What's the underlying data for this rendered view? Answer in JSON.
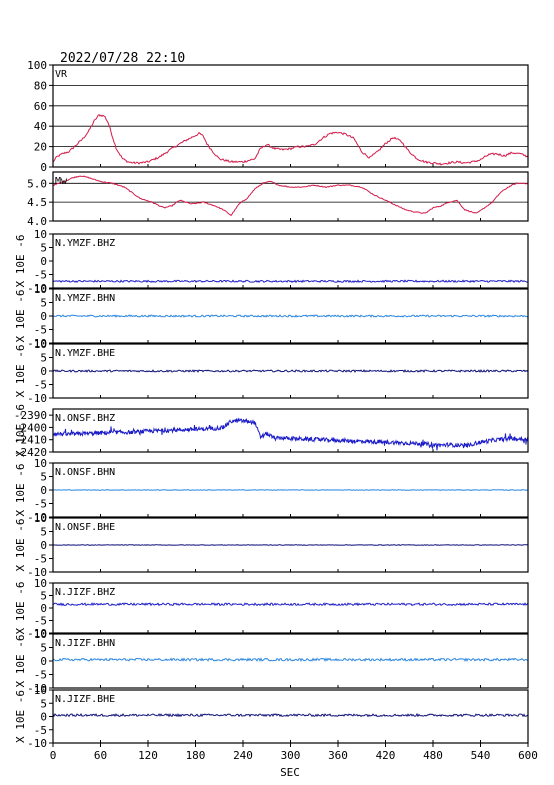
{
  "header": {
    "timestamp": "2022/07/28 22:10"
  },
  "x_axis": {
    "label": "SEC",
    "ticks": [
      0,
      60,
      120,
      180,
      240,
      300,
      360,
      420,
      480,
      540,
      600
    ],
    "range": [
      0,
      600
    ]
  },
  "colors": {
    "vr": "#d21b4a",
    "mw": "#d21b4a",
    "blue": "#1e1ec8",
    "light_blue": "#2a86e0",
    "navy": "#10107a",
    "grid": "#000000"
  },
  "chart_data": [
    {
      "type": "line",
      "label": "VR",
      "ylim": [
        0,
        100
      ],
      "yticks": [
        0,
        20,
        40,
        60,
        80,
        100
      ],
      "grid": true,
      "color": "#d21b4a",
      "x": [
        0,
        5,
        12,
        20,
        30,
        38,
        45,
        52,
        58,
        65,
        70,
        75,
        80,
        88,
        95,
        102,
        110,
        120,
        135,
        150,
        165,
        175,
        185,
        190,
        195,
        202,
        210,
        225,
        240,
        255,
        262,
        270,
        280,
        290,
        300,
        310,
        320,
        330,
        340,
        350,
        360,
        370,
        380,
        390,
        400,
        410,
        420,
        430,
        440,
        450,
        460,
        470,
        480,
        490,
        500,
        510,
        520,
        530,
        540,
        550,
        560,
        570,
        580,
        590,
        600
      ],
      "y": [
        5,
        10,
        13,
        15,
        22,
        28,
        35,
        45,
        51,
        50,
        43,
        30,
        18,
        8,
        5,
        4,
        4,
        5,
        10,
        18,
        25,
        29,
        33,
        30,
        22,
        15,
        8,
        5,
        5,
        8,
        18,
        22,
        18,
        17,
        18,
        20,
        20,
        22,
        28,
        33,
        34,
        32,
        28,
        15,
        9,
        15,
        23,
        29,
        25,
        15,
        8,
        5,
        4,
        3,
        4,
        5,
        4,
        5,
        7,
        12,
        13,
        11,
        14,
        13,
        10
      ]
    },
    {
      "type": "line",
      "label": "Mw",
      "ylim": [
        4.0,
        5.3
      ],
      "yticks": [
        4.0,
        4.5,
        5.0
      ],
      "grid": true,
      "color": "#d21b4a",
      "x": [
        0,
        8,
        15,
        25,
        35,
        45,
        60,
        75,
        90,
        100,
        110,
        125,
        140,
        150,
        160,
        175,
        190,
        205,
        215,
        225,
        235,
        245,
        255,
        265,
        275,
        285,
        300,
        315,
        330,
        345,
        360,
        375,
        390,
        405,
        420,
        430,
        445,
        455,
        470,
        480,
        490,
        500,
        510,
        520,
        535,
        545,
        555,
        565,
        575,
        585,
        600
      ],
      "y": [
        4.95,
        5.0,
        5.05,
        5.15,
        5.2,
        5.15,
        5.05,
        5.0,
        4.9,
        4.75,
        4.6,
        4.5,
        4.35,
        4.4,
        4.55,
        4.45,
        4.5,
        4.4,
        4.3,
        4.15,
        4.45,
        4.6,
        4.85,
        5.0,
        5.05,
        4.95,
        4.9,
        4.9,
        4.95,
        4.9,
        4.95,
        4.95,
        4.9,
        4.7,
        4.55,
        4.45,
        4.3,
        4.25,
        4.2,
        4.35,
        4.4,
        4.5,
        4.55,
        4.3,
        4.2,
        4.35,
        4.5,
        4.75,
        4.9,
        5.0,
        5.0
      ]
    },
    {
      "type": "line",
      "label": "N.YMZF.BHZ",
      "unit": "X 10E -6",
      "ylim": [
        -10,
        10
      ],
      "yticks": [
        -10,
        -5,
        0,
        5,
        10
      ],
      "color": "#1e1ec8",
      "offset": -7.5,
      "noise": 0.35,
      "pattern": "flat"
    },
    {
      "type": "line",
      "label": "N.YMZF.BHN",
      "unit": "X 10E -6",
      "ylim": [
        -10,
        10
      ],
      "yticks": [
        -10,
        -5,
        0,
        5,
        10
      ],
      "color": "#2a86e0",
      "offset": 0.0,
      "noise": 0.35,
      "pattern": "flat"
    },
    {
      "type": "line",
      "label": "N.YMZF.BHE",
      "unit": "X 10E -6",
      "ylim": [
        -10,
        10
      ],
      "yticks": [
        -10,
        -5,
        0,
        5,
        10
      ],
      "color": "#10107a",
      "offset": 0.0,
      "noise": 0.35,
      "pattern": "flat"
    },
    {
      "type": "line",
      "label": "N.ONSF.BHZ",
      "unit": "X 10E -6",
      "ylim": [
        -2420,
        -2385
      ],
      "yticks": [
        -2420,
        -2410,
        -2400,
        -2390
      ],
      "color": "#1e1ec8",
      "noise": 1.6,
      "pattern": "trend",
      "x": [
        0,
        20,
        40,
        60,
        80,
        100,
        120,
        140,
        160,
        180,
        200,
        215,
        225,
        235,
        245,
        255,
        262,
        270,
        280,
        290,
        300,
        320,
        340,
        360,
        380,
        400,
        420,
        440,
        460,
        470,
        480,
        490,
        500,
        520,
        540,
        560,
        580,
        600
      ],
      "y": [
        -2405,
        -2405.5,
        -2405,
        -2404.5,
        -2404,
        -2404,
        -2403,
        -2402.5,
        -2402,
        -2401.5,
        -2401,
        -2400,
        -2395,
        -2394.5,
        -2395,
        -2396,
        -2408,
        -2405,
        -2409,
        -2408.5,
        -2409,
        -2409.5,
        -2410,
        -2410.5,
        -2411,
        -2411.5,
        -2412,
        -2412.5,
        -2413,
        -2413.5,
        -2414,
        -2414.5,
        -2414,
        -2415,
        -2412,
        -2410,
        -2409,
        -2410
      ]
    },
    {
      "type": "line",
      "label": "N.ONSF.BHN",
      "unit": "X 10E -6",
      "ylim": [
        -10,
        10
      ],
      "yticks": [
        -10,
        -5,
        0,
        5,
        10
      ],
      "color": "#2a86e0",
      "offset": 0.0,
      "noise": 0.1,
      "pattern": "flat"
    },
    {
      "type": "line",
      "label": "N.ONSF.BHE",
      "unit": "X 10E -6",
      "ylim": [
        -10,
        10
      ],
      "yticks": [
        -10,
        -5,
        0,
        5,
        10
      ],
      "color": "#10107a",
      "offset": 0.0,
      "noise": 0.1,
      "pattern": "flat"
    },
    {
      "type": "line",
      "label": "N.JIZF.BHZ",
      "unit": "X 10E -6",
      "ylim": [
        -10,
        10
      ],
      "yticks": [
        -10,
        -5,
        0,
        5,
        10
      ],
      "color": "#1e1ec8",
      "offset": 1.5,
      "noise": 0.45,
      "pattern": "flat"
    },
    {
      "type": "line",
      "label": "N.JIZF.BHN",
      "unit": "X 10E -6",
      "ylim": [
        -10,
        10
      ],
      "yticks": [
        -10,
        -5,
        0,
        5,
        10
      ],
      "color": "#2a86e0",
      "offset": 0.5,
      "noise": 0.45,
      "pattern": "flat"
    },
    {
      "type": "line",
      "label": "N.JIZF.BHE",
      "unit": "X 10E -6",
      "ylim": [
        -10,
        10
      ],
      "yticks": [
        -10,
        -5,
        0,
        5,
        10
      ],
      "color": "#10107a",
      "offset": 0.5,
      "noise": 0.45,
      "pattern": "flat"
    }
  ]
}
